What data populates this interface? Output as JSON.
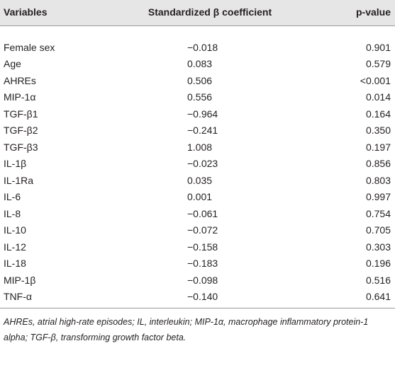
{
  "table": {
    "header": [
      "Variables",
      "Standardized β coefficient",
      "p-value"
    ],
    "rows": [
      [
        "Female sex",
        "−0.018",
        "0.901"
      ],
      [
        "Age",
        "0.083",
        "0.579"
      ],
      [
        "AHREs",
        "0.506",
        "<0.001"
      ],
      [
        "MIP-1α",
        "0.556",
        "0.014"
      ],
      [
        "TGF-β1",
        "−0.964",
        "0.164"
      ],
      [
        "TGF-β2",
        "−0.241",
        "0.350"
      ],
      [
        "TGF-β3",
        "1.008",
        "0.197"
      ],
      [
        "IL-1β",
        "−0.023",
        "0.856"
      ],
      [
        "IL-1Ra",
        "0.035",
        "0.803"
      ],
      [
        "IL-6",
        "0.001",
        "0.997"
      ],
      [
        "IL-8",
        "−0.061",
        "0.754"
      ],
      [
        "IL-10",
        "−0.072",
        "0.705"
      ],
      [
        "IL-12",
        "−0.158",
        "0.303"
      ],
      [
        "IL-18",
        "−0.183",
        "0.196"
      ],
      [
        "MIP-1β",
        "−0.098",
        "0.516"
      ],
      [
        "TNF-α",
        "−0.140",
        "0.641"
      ]
    ],
    "footnote": "AHREs, atrial high-rate episodes; IL, interleukin; MIP-1α, macrophage inflammatory protein-1 alpha; TGF-β, transforming growth factor beta."
  }
}
